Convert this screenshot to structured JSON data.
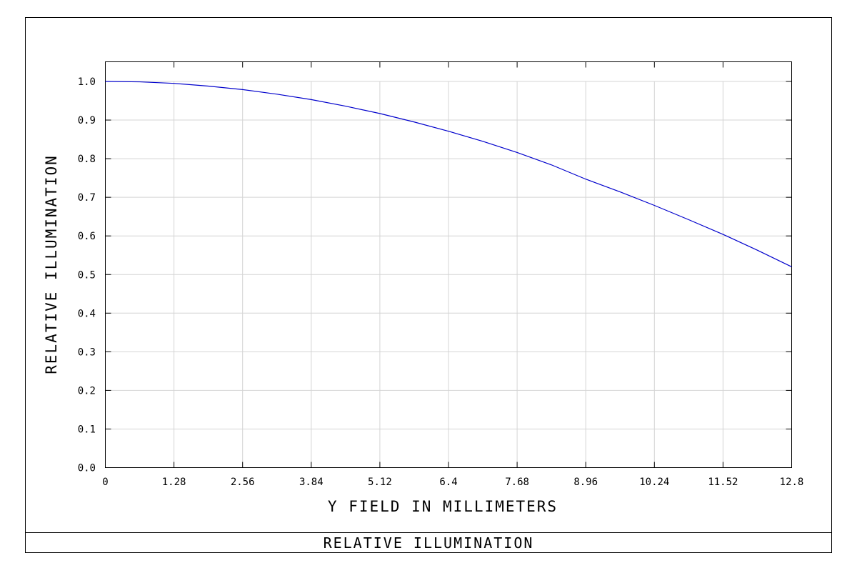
{
  "chart_data": {
    "type": "line",
    "title": "RELATIVE ILLUMINATION",
    "xlabel": "Y FIELD IN MILLIMETERS",
    "ylabel": "RELATIVE ILLUMINATION",
    "xlim": [
      0,
      12.8
    ],
    "ylim": [
      0,
      1.0
    ],
    "x_ticks": [
      "0",
      "1.28",
      "2.56",
      "3.84",
      "5.12",
      "6.4",
      "7.68",
      "8.96",
      "10.24",
      "11.52",
      "12.8"
    ],
    "y_ticks": [
      "0.0",
      "0.1",
      "0.2",
      "0.3",
      "0.4",
      "0.5",
      "0.6",
      "0.7",
      "0.8",
      "0.9",
      "1.0"
    ],
    "grid": true,
    "line_color": "#0000cc",
    "series": [
      {
        "x": [
          0,
          0.64,
          1.28,
          1.92,
          2.56,
          3.2,
          3.84,
          4.48,
          5.12,
          5.76,
          6.4,
          7.04,
          7.68,
          8.32,
          8.96,
          9.6,
          10.24,
          10.88,
          11.52,
          12.16,
          12.8
        ],
        "values": [
          1.0,
          0.999,
          0.995,
          0.988,
          0.979,
          0.967,
          0.953,
          0.936,
          0.917,
          0.895,
          0.871,
          0.845,
          0.816,
          0.784,
          0.747,
          0.714,
          0.679,
          0.642,
          0.604,
          0.563,
          0.52
        ]
      }
    ]
  }
}
